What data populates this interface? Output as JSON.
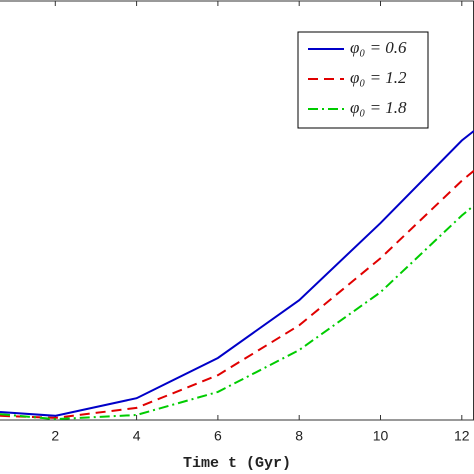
{
  "chart_data": {
    "type": "line",
    "xlabel": "Time t (Gyr)",
    "x": [
      0.64,
      2,
      4,
      6,
      8,
      10,
      12,
      12.3
    ],
    "series": [
      {
        "name": "φ₀ = 0.6",
        "color": "#0000c8",
        "dash": "solid",
        "values": [
          1.9,
          1,
          5.2,
          14.8,
          28.6,
          47,
          66.7,
          69
        ]
      },
      {
        "name": "φ₀ = 1.2",
        "color": "#e00000",
        "dash": "dashed",
        "values": [
          1,
          0.5,
          2.9,
          10.7,
          22.6,
          38.6,
          57.1,
          59.5
        ]
      },
      {
        "name": "φ₀ = 1.8",
        "color": "#00cc00",
        "dash": "dashdot",
        "values": [
          1.4,
          0.2,
          1.2,
          6.7,
          16.7,
          30.5,
          48.8,
          51.2
        ]
      }
    ],
    "xlim": [
      0.64,
      12.3
    ],
    "xticks": [
      2,
      4,
      6,
      8,
      10,
      12
    ],
    "ylim": [
      0,
      100
    ],
    "legend": "upper-right"
  }
}
